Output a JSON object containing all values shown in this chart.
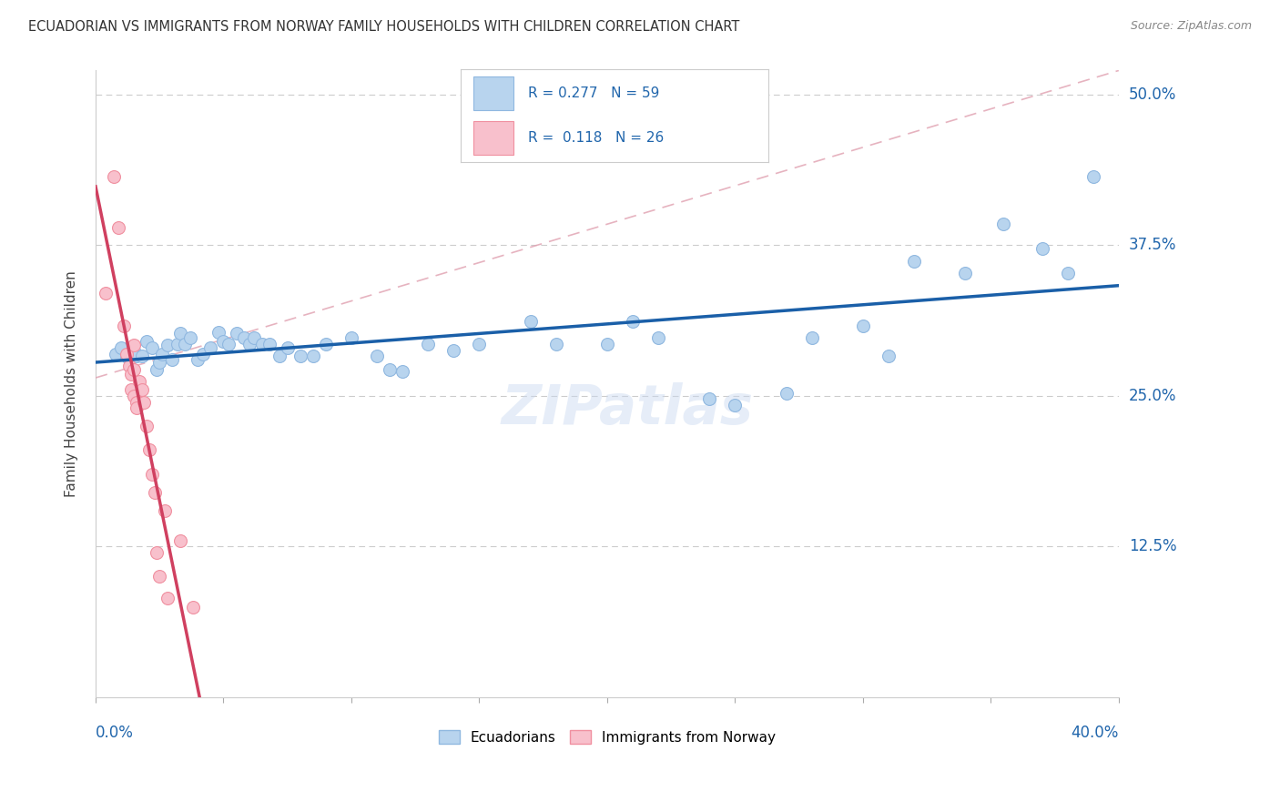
{
  "title": "ECUADORIAN VS IMMIGRANTS FROM NORWAY FAMILY HOUSEHOLDS WITH CHILDREN CORRELATION CHART",
  "source": "Source: ZipAtlas.com",
  "ylabel": "Family Households with Children",
  "yticks": [
    "50.0%",
    "37.5%",
    "25.0%",
    "12.5%"
  ],
  "ytick_vals": [
    0.5,
    0.375,
    0.25,
    0.125
  ],
  "xlim": [
    0.0,
    0.4
  ],
  "ylim": [
    0.0,
    0.52
  ],
  "blue_scatter": [
    [
      0.008,
      0.285
    ],
    [
      0.01,
      0.29
    ],
    [
      0.012,
      0.283
    ],
    [
      0.013,
      0.28
    ],
    [
      0.015,
      0.288
    ],
    [
      0.016,
      0.283
    ],
    [
      0.018,
      0.283
    ],
    [
      0.02,
      0.295
    ],
    [
      0.022,
      0.29
    ],
    [
      0.024,
      0.272
    ],
    [
      0.025,
      0.278
    ],
    [
      0.026,
      0.285
    ],
    [
      0.028,
      0.292
    ],
    [
      0.03,
      0.28
    ],
    [
      0.032,
      0.293
    ],
    [
      0.033,
      0.302
    ],
    [
      0.035,
      0.293
    ],
    [
      0.037,
      0.298
    ],
    [
      0.04,
      0.28
    ],
    [
      0.042,
      0.285
    ],
    [
      0.045,
      0.29
    ],
    [
      0.048,
      0.303
    ],
    [
      0.05,
      0.295
    ],
    [
      0.052,
      0.293
    ],
    [
      0.055,
      0.302
    ],
    [
      0.058,
      0.298
    ],
    [
      0.06,
      0.293
    ],
    [
      0.062,
      0.298
    ],
    [
      0.065,
      0.293
    ],
    [
      0.068,
      0.293
    ],
    [
      0.072,
      0.283
    ],
    [
      0.075,
      0.29
    ],
    [
      0.08,
      0.283
    ],
    [
      0.085,
      0.283
    ],
    [
      0.09,
      0.293
    ],
    [
      0.1,
      0.298
    ],
    [
      0.11,
      0.283
    ],
    [
      0.115,
      0.272
    ],
    [
      0.12,
      0.27
    ],
    [
      0.13,
      0.293
    ],
    [
      0.14,
      0.288
    ],
    [
      0.15,
      0.293
    ],
    [
      0.17,
      0.312
    ],
    [
      0.18,
      0.293
    ],
    [
      0.2,
      0.293
    ],
    [
      0.21,
      0.312
    ],
    [
      0.22,
      0.298
    ],
    [
      0.24,
      0.248
    ],
    [
      0.25,
      0.242
    ],
    [
      0.27,
      0.252
    ],
    [
      0.28,
      0.298
    ],
    [
      0.3,
      0.308
    ],
    [
      0.31,
      0.283
    ],
    [
      0.32,
      0.362
    ],
    [
      0.34,
      0.352
    ],
    [
      0.355,
      0.393
    ],
    [
      0.37,
      0.372
    ],
    [
      0.38,
      0.352
    ],
    [
      0.39,
      0.432
    ]
  ],
  "pink_scatter": [
    [
      0.004,
      0.335
    ],
    [
      0.007,
      0.432
    ],
    [
      0.009,
      0.39
    ],
    [
      0.011,
      0.308
    ],
    [
      0.012,
      0.285
    ],
    [
      0.013,
      0.275
    ],
    [
      0.014,
      0.255
    ],
    [
      0.014,
      0.268
    ],
    [
      0.015,
      0.292
    ],
    [
      0.015,
      0.272
    ],
    [
      0.015,
      0.25
    ],
    [
      0.016,
      0.245
    ],
    [
      0.016,
      0.24
    ],
    [
      0.017,
      0.262
    ],
    [
      0.018,
      0.255
    ],
    [
      0.019,
      0.245
    ],
    [
      0.02,
      0.225
    ],
    [
      0.021,
      0.205
    ],
    [
      0.022,
      0.185
    ],
    [
      0.023,
      0.17
    ],
    [
      0.024,
      0.12
    ],
    [
      0.025,
      0.1
    ],
    [
      0.027,
      0.155
    ],
    [
      0.028,
      0.082
    ],
    [
      0.033,
      0.13
    ],
    [
      0.038,
      0.075
    ]
  ],
  "watermark": "ZIPatlas",
  "title_fontsize": 10.5
}
